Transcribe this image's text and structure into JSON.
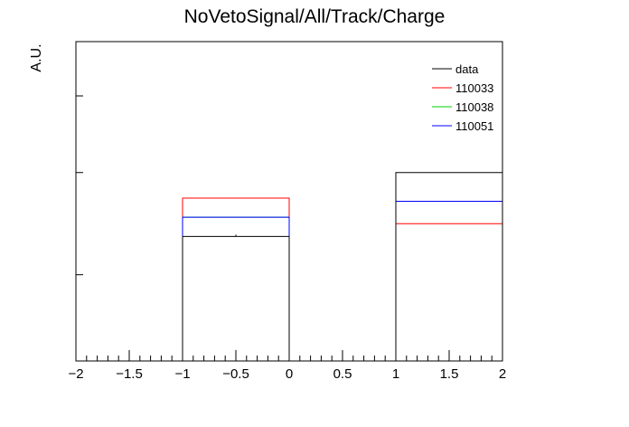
{
  "chart_data": {
    "type": "histogram-step",
    "title": "NoVetoSignal/All/Track/Charge",
    "xlabel": "",
    "ylabel": "A.U.",
    "xlim": [
      -2,
      2
    ],
    "ylog": true,
    "xticks": [
      -2,
      -1.5,
      -1,
      -0.5,
      0,
      0.5,
      1,
      1.5,
      2
    ],
    "xtick_labels": [
      "−2",
      "−1.5",
      "−1",
      "−0.5",
      "0",
      "0.5",
      "1",
      "1.5",
      "2"
    ],
    "bins": [
      [
        -1,
        0
      ],
      [
        1,
        2
      ]
    ],
    "legend_position": "top-right",
    "series": [
      {
        "name": "data",
        "color": "#000000",
        "values": [
          0.39,
          0.59
        ]
      },
      {
        "name": "110033",
        "color": "#ff0000",
        "values": [
          0.51,
          0.43
        ]
      },
      {
        "name": "110038",
        "color": "#00cc00",
        "values": [
          0.45,
          0.5
        ]
      },
      {
        "name": "110051",
        "color": "#0000ff",
        "values": [
          0.45,
          0.5
        ]
      }
    ]
  }
}
